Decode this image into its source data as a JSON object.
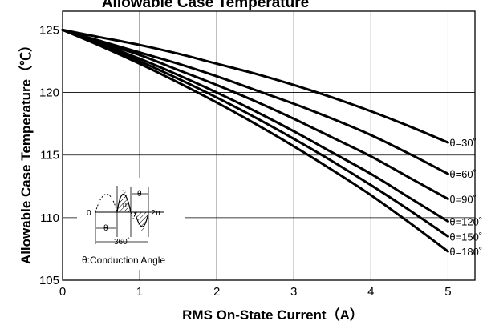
{
  "chart_data": {
    "type": "line",
    "title": "Allowable Case Temperature",
    "xlabel": "RMS On-State Current（A）",
    "ylabel": "Allowable Case Temperature（℃）",
    "xlim": [
      0,
      5.35
    ],
    "ylim": [
      105,
      126.5
    ],
    "xticks": [
      0,
      1,
      2,
      3,
      4,
      5
    ],
    "yticks": [
      105,
      110,
      115,
      120,
      125
    ],
    "grid": true,
    "series": [
      {
        "name": "θ=30˚",
        "x": [
          0,
          0.5,
          1,
          1.5,
          2,
          2.5,
          3,
          3.5,
          4,
          4.5,
          5
        ],
        "y": [
          125,
          124.4,
          123.8,
          123.1,
          122.3,
          121.5,
          120.6,
          119.6,
          118.5,
          117.3,
          116.0
        ]
      },
      {
        "name": "θ=60˚",
        "x": [
          0,
          0.5,
          1,
          1.5,
          2,
          2.5,
          3,
          3.5,
          4,
          4.5,
          5
        ],
        "y": [
          125,
          124.1,
          123.2,
          122.3,
          121.3,
          120.2,
          119.1,
          117.9,
          116.6,
          115.1,
          113.5
        ]
      },
      {
        "name": "θ=90˚",
        "x": [
          0,
          0.5,
          1,
          1.5,
          2,
          2.5,
          3,
          3.5,
          4,
          4.5,
          5
        ],
        "y": [
          125,
          124.0,
          123.0,
          121.8,
          120.6,
          119.3,
          117.9,
          116.4,
          114.9,
          113.2,
          111.5
        ]
      },
      {
        "name": "θ=120˚",
        "x": [
          0,
          0.5,
          1,
          1.5,
          2,
          2.5,
          3,
          3.5,
          4,
          4.5,
          5
        ],
        "y": [
          125,
          123.9,
          122.7,
          121.4,
          120.0,
          118.5,
          116.9,
          115.2,
          113.5,
          111.6,
          109.7
        ]
      },
      {
        "name": "θ=150˚",
        "x": [
          0,
          0.5,
          1,
          1.5,
          2,
          2.5,
          3,
          3.5,
          4,
          4.5,
          5
        ],
        "y": [
          125,
          123.8,
          122.5,
          121.1,
          119.6,
          118.0,
          116.3,
          114.5,
          112.6,
          110.6,
          108.5
        ]
      },
      {
        "name": "θ=180˚",
        "x": [
          0,
          0.5,
          1,
          1.5,
          2,
          2.5,
          3,
          3.5,
          4,
          4.5,
          5
        ],
        "y": [
          125,
          123.7,
          122.3,
          120.8,
          119.2,
          117.5,
          115.7,
          113.8,
          111.8,
          109.6,
          107.3
        ]
      }
    ]
  },
  "inset": {
    "label_zero": "0",
    "label_pi": "π",
    "label_two_pi": "2π",
    "label_theta": "θ",
    "label_period": "360˚",
    "caption": "θ:Conduction Angle"
  }
}
